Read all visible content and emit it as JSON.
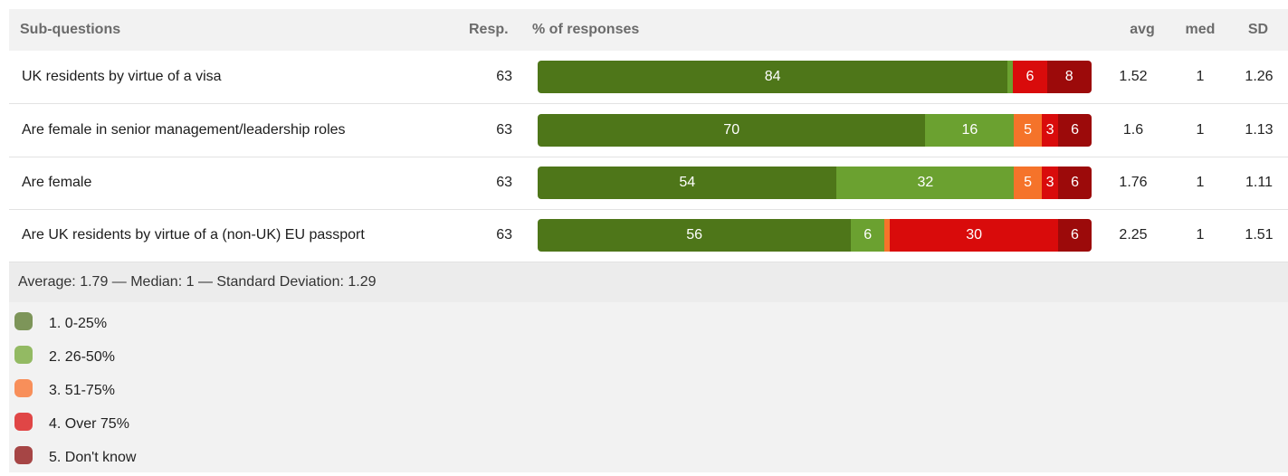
{
  "header": {
    "sub_questions": "Sub-questions",
    "resp": "Resp.",
    "pct": "% of responses",
    "avg": "avg",
    "med": "med",
    "sd": "SD"
  },
  "chart_data": {
    "type": "bar",
    "stacked": true,
    "orientation": "horizontal",
    "categories": [
      "UK residents by virtue of a visa",
      "Are female in senior management/leadership roles",
      "Are female",
      "Are UK residents by virtue of a (non-UK) EU passport"
    ],
    "series": [
      {
        "name": "1. 0-25%",
        "color": "#4e7619",
        "values": [
          84,
          70,
          54,
          56
        ],
        "labels": [
          "84",
          "70",
          "54",
          "56"
        ]
      },
      {
        "name": "2. 26-50%",
        "color": "#6ba130",
        "values": [
          1,
          16,
          32,
          6
        ],
        "labels": [
          "",
          "16",
          "32",
          "6"
        ]
      },
      {
        "name": "3. 51-75%",
        "color": "#f5732a",
        "values": [
          0,
          5,
          5,
          1
        ],
        "labels": [
          "",
          "5",
          "5",
          ""
        ]
      },
      {
        "name": "4. Over 75%",
        "color": "#d90b0b",
        "values": [
          6,
          3,
          3,
          30
        ],
        "labels": [
          "6",
          "3",
          "3",
          "30"
        ]
      },
      {
        "name": "5. Don't know",
        "color": "#9c0a0a",
        "values": [
          8,
          6,
          6,
          6
        ],
        "labels": [
          "8",
          "6",
          "6",
          "6"
        ]
      }
    ],
    "xlim": [
      0,
      100
    ],
    "legend_position": "bottom-left"
  },
  "rows": [
    {
      "label": "UK residents by virtue of a visa",
      "resp": "63",
      "avg": "1.52",
      "med": "1",
      "sd": "1.26"
    },
    {
      "label": "Are female in senior management/leadership roles",
      "resp": "63",
      "avg": "1.6",
      "med": "1",
      "sd": "1.13"
    },
    {
      "label": "Are female",
      "resp": "63",
      "avg": "1.76",
      "med": "1",
      "sd": "1.11"
    },
    {
      "label": "Are UK residents by virtue of a (non-UK) EU passport",
      "resp": "63",
      "avg": "2.25",
      "med": "1",
      "sd": "1.51"
    }
  ],
  "summary": "Average: 1.79 — Median: 1 — Standard Deviation: 1.29",
  "legend": [
    {
      "label": "1. 0-25%",
      "color": "#7d9559"
    },
    {
      "label": "2. 26-50%",
      "color": "#93ba63"
    },
    {
      "label": "3. 51-75%",
      "color": "#f88f5a"
    },
    {
      "label": "4. Over 75%",
      "color": "#e04646"
    },
    {
      "label": "5. Don't know",
      "color": "#a64545"
    }
  ]
}
